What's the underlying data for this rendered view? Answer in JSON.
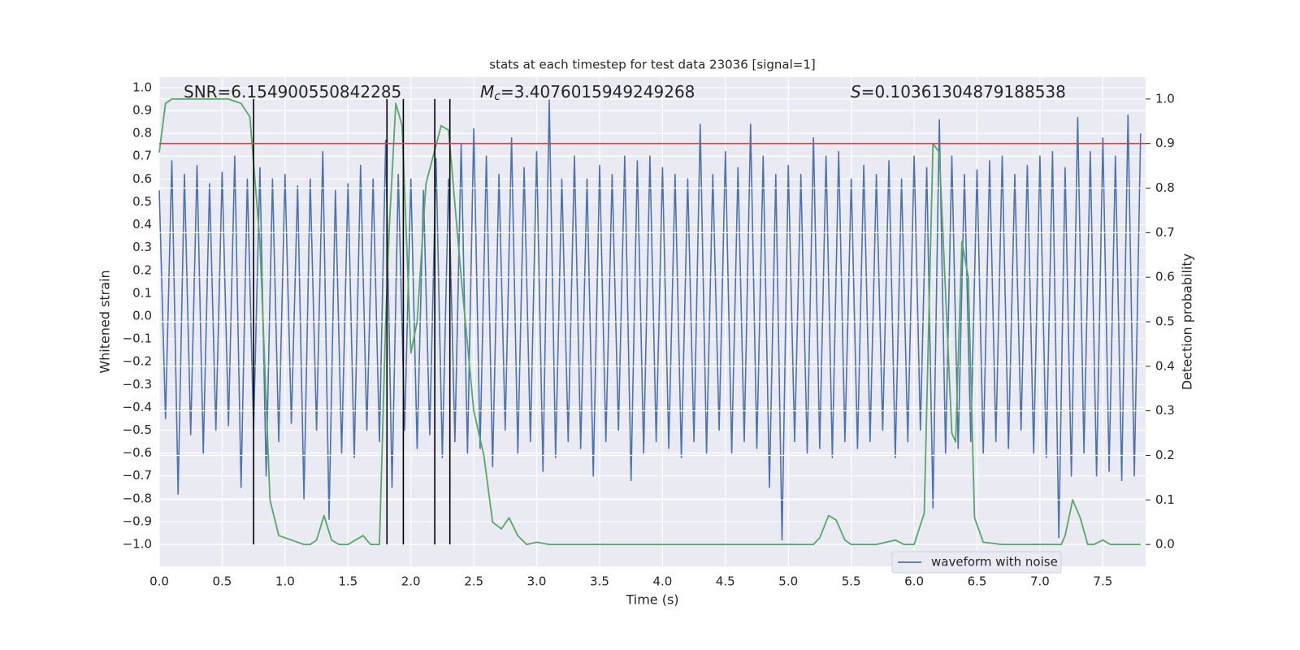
{
  "chart_data": {
    "type": "line",
    "title": "stats at each timestep for test data 23036 [signal=1]",
    "xlabel": "Time (s)",
    "ylabel": "Whitened strain",
    "y2label": "Detection probability",
    "xlim": [
      0,
      7.84
    ],
    "ylim": [
      -1.096,
      1.046
    ],
    "y2lim": [
      -0.049,
      1.049
    ],
    "xticks": [
      {
        "value": 0,
        "label": "0.0"
      },
      0.5,
      {
        "value": 1,
        "label": "1.0"
      },
      1.5,
      {
        "value": 2,
        "label": "2.0"
      },
      2.5,
      {
        "value": 3,
        "label": "3.0"
      },
      3.5,
      {
        "value": 4,
        "label": "4.0"
      },
      4.5,
      {
        "value": 5,
        "label": "5.0"
      },
      5.5,
      {
        "value": 6,
        "label": "6.0"
      },
      6.5,
      {
        "value": 7,
        "label": "7.0"
      },
      7.5
    ],
    "yticks": [
      {
        "value": -1,
        "label": "−1.0"
      },
      {
        "value": -0.9,
        "label": "−0.9"
      },
      {
        "value": -0.8,
        "label": "−0.8"
      },
      {
        "value": -0.7,
        "label": "−0.7"
      },
      {
        "value": -0.6,
        "label": "−0.6"
      },
      {
        "value": -0.5,
        "label": "−0.5"
      },
      {
        "value": -0.4,
        "label": "−0.4"
      },
      {
        "value": -0.3,
        "label": "−0.3"
      },
      {
        "value": -0.2,
        "label": "−0.2"
      },
      {
        "value": -0.1,
        "label": "−0.1"
      },
      {
        "value": 0,
        "label": "0.0"
      },
      0.1,
      0.2,
      0.3,
      0.4,
      0.5,
      0.6,
      0.7,
      0.8,
      0.9,
      {
        "value": 1,
        "label": "1.0"
      }
    ],
    "y2ticks": [
      {
        "value": 0,
        "label": "0.0"
      },
      0.1,
      0.2,
      0.3,
      0.4,
      0.5,
      0.6,
      0.7,
      0.8,
      0.9,
      {
        "value": 1,
        "label": "1.0"
      }
    ],
    "grid": true,
    "legend": "lower right",
    "series": [
      {
        "name": "waveform with noise",
        "color": "#4c72b0",
        "x": [
          0,
          0.05,
          0.1,
          0.15,
          0.2,
          0.25,
          0.3,
          0.35,
          0.4,
          0.45,
          0.5,
          0.55,
          0.6,
          0.65,
          0.7,
          0.75,
          0.8,
          0.85,
          0.9,
          0.95,
          1,
          1.05,
          1.1,
          1.15,
          1.2,
          1.25,
          1.3,
          1.35,
          1.4,
          1.45,
          1.5,
          1.55,
          1.6,
          1.65,
          1.7,
          1.75,
          1.8,
          1.85,
          1.9,
          1.95,
          2,
          2.05,
          2.1,
          2.15,
          2.2,
          2.25,
          2.3,
          2.35,
          2.4,
          2.45,
          2.5,
          2.55,
          2.6,
          2.65,
          2.7,
          2.75,
          2.8,
          2.85,
          2.9,
          2.95,
          3,
          3.05,
          3.1,
          3.15,
          3.2,
          3.25,
          3.3,
          3.35,
          3.4,
          3.45,
          3.5,
          3.55,
          3.6,
          3.65,
          3.7,
          3.75,
          3.8,
          3.85,
          3.9,
          3.95,
          4,
          4.05,
          4.1,
          4.15,
          4.2,
          4.25,
          4.3,
          4.35,
          4.4,
          4.45,
          4.5,
          4.55,
          4.6,
          4.65,
          4.7,
          4.75,
          4.8,
          4.85,
          4.9,
          4.95,
          5,
          5.05,
          5.1,
          5.15,
          5.2,
          5.25,
          5.3,
          5.35,
          5.4,
          5.45,
          5.5,
          5.55,
          5.6,
          5.65,
          5.7,
          5.75,
          5.8,
          5.85,
          5.9,
          5.95,
          6,
          6.05,
          6.1,
          6.15,
          6.2,
          6.25,
          6.3,
          6.35,
          6.4,
          6.45,
          6.5,
          6.55,
          6.6,
          6.65,
          6.7,
          6.75,
          6.8,
          6.85,
          6.9,
          6.95,
          7,
          7.05,
          7.1,
          7.15,
          7.2,
          7.25,
          7.3,
          7.35,
          7.4,
          7.45,
          7.5,
          7.55,
          7.6,
          7.65,
          7.7,
          7.75,
          7.8
        ],
        "values": [
          0.55,
          -0.45,
          0.68,
          -0.78,
          0.62,
          -0.52,
          0.66,
          -0.6,
          0.58,
          -0.5,
          0.63,
          -0.48,
          0.7,
          -0.75,
          0.6,
          -0.5,
          0.65,
          -0.7,
          0.6,
          -0.55,
          0.62,
          -0.47,
          0.57,
          -0.8,
          0.6,
          -0.5,
          0.72,
          -0.89,
          0.55,
          -0.6,
          0.58,
          -0.62,
          0.66,
          -0.5,
          0.6,
          -0.55,
          0.77,
          -0.75,
          0.62,
          -0.5,
          0.6,
          -0.58,
          0.55,
          -0.52,
          0.69,
          -0.62,
          0.6,
          -0.55,
          0.75,
          -0.6,
          0.82,
          -0.58,
          0.7,
          -0.66,
          0.62,
          -0.5,
          0.78,
          -0.6,
          0.65,
          -0.55,
          0.72,
          -0.68,
          0.95,
          -0.62,
          0.6,
          -0.55,
          0.7,
          -0.58,
          0.6,
          -0.7,
          0.66,
          -0.55,
          0.62,
          -0.5,
          0.7,
          -0.72,
          0.68,
          -0.6,
          0.7,
          -0.55,
          0.65,
          -0.58,
          0.62,
          -0.62,
          0.6,
          -0.55,
          0.84,
          -0.6,
          0.62,
          -0.5,
          0.72,
          -0.6,
          0.65,
          -0.55,
          0.84,
          -0.58,
          0.7,
          -0.75,
          0.62,
          -0.98,
          0.66,
          -0.55,
          0.62,
          -0.6,
          0.78,
          -0.58,
          0.7,
          -0.62,
          0.72,
          -0.55,
          0.6,
          -0.58,
          0.66,
          -0.55,
          0.62,
          -0.5,
          0.68,
          -0.62,
          0.6,
          -0.55,
          0.7,
          -0.5,
          0.65,
          -0.84,
          0.86,
          -0.6,
          0.7,
          -0.58,
          0.62,
          -0.55,
          0.64,
          -0.6,
          0.68,
          -0.55,
          0.7,
          -0.58,
          0.62,
          -0.5,
          0.66,
          -0.6,
          0.7,
          -0.62,
          0.72,
          -0.97,
          0.65,
          -0.7,
          0.87,
          -0.6,
          0.72,
          -0.7,
          0.78,
          -0.68,
          0.7,
          -0.72,
          0.88,
          -0.7,
          0.8
        ]
      },
      {
        "color": "#55a868",
        "axis": "y2",
        "x": [
          0,
          0.05,
          0.1,
          0.55,
          0.65,
          0.72,
          0.8,
          0.88,
          0.95,
          1.05,
          1.15,
          1.2,
          1.25,
          1.31,
          1.37,
          1.43,
          1.5,
          1.62,
          1.68,
          1.75,
          1.8,
          1.83,
          1.88,
          1.93,
          2.0,
          2.05,
          2.12,
          2.24,
          2.3,
          2.4,
          2.5,
          2.58,
          2.65,
          2.72,
          2.78,
          2.85,
          2.92,
          3.0,
          3.1,
          3.5,
          4.0,
          4.5,
          4.9,
          5.2,
          5.25,
          5.32,
          5.38,
          5.45,
          5.5,
          5.7,
          5.85,
          5.92,
          6.0,
          6.08,
          6.15,
          6.2,
          6.3,
          6.33,
          6.38,
          6.43,
          6.48,
          6.55,
          6.7,
          7.0,
          7.17,
          7.2,
          7.26,
          7.32,
          7.38,
          7.43,
          7.5,
          7.56,
          7.8
        ],
        "values": [
          0.88,
          0.99,
          1.0,
          1.0,
          0.99,
          0.96,
          0.68,
          0.1,
          0.02,
          0.01,
          0.0,
          0.0,
          0.01,
          0.065,
          0.01,
          0.0,
          0.0,
          0.02,
          0.0,
          0.0,
          0.5,
          0.72,
          0.99,
          0.94,
          0.43,
          0.5,
          0.81,
          0.94,
          0.93,
          0.6,
          0.3,
          0.2,
          0.05,
          0.035,
          0.06,
          0.02,
          0.0,
          0.005,
          0.0,
          0.0,
          0.0,
          0.0,
          0.0,
          0.0,
          0.015,
          0.065,
          0.055,
          0.01,
          0.0,
          0.0,
          0.01,
          0.0,
          0.0,
          0.07,
          0.9,
          0.88,
          0.25,
          0.23,
          0.68,
          0.6,
          0.06,
          0.005,
          0.0,
          0.0,
          0.0,
          0.02,
          0.1,
          0.06,
          0.0,
          0.0,
          0.01,
          0.0,
          0.0
        ]
      }
    ],
    "hlines": [
      {
        "y": 0.9,
        "axis": "y2",
        "color": "#c44e52"
      }
    ],
    "vlines": {
      "x": [
        0.75,
        1.81,
        1.94,
        2.19,
        2.31
      ],
      "ymin": 0,
      "ymax": 1,
      "axis": "y2",
      "color": "#000000"
    },
    "annotations": [
      {
        "text": "SNR=6.154900550842285"
      },
      {
        "symbol": "M",
        "subscript": "c",
        "text": "=3.4076015949249268"
      },
      {
        "symbol": "S",
        "text": "=0.10361304879188538"
      }
    ]
  }
}
